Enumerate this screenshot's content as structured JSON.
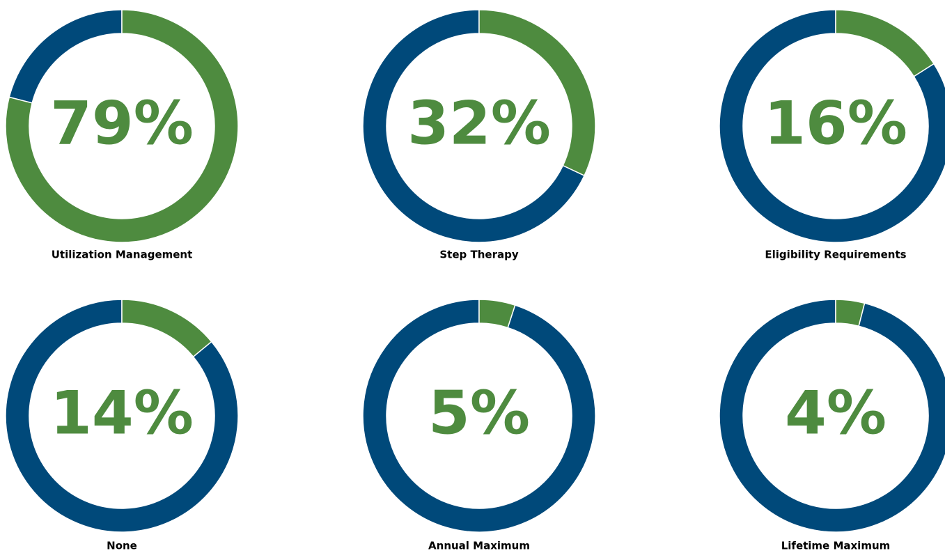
{
  "chart_data": [
    {
      "type": "donut",
      "title": "Utilization Management",
      "values": [
        79
      ],
      "value_labels": [
        "79%"
      ],
      "color": "#4e8b3f",
      "track_color": "#00497a",
      "ylim": [
        0,
        100
      ]
    },
    {
      "type": "donut",
      "title": "Step Therapy",
      "values": [
        32
      ],
      "value_labels": [
        "32%"
      ],
      "color": "#4e8b3f",
      "track_color": "#00497a",
      "ylim": [
        0,
        100
      ]
    },
    {
      "type": "donut",
      "title": "Eligibility Requirements",
      "values": [
        16
      ],
      "value_labels": [
        "16%"
      ],
      "color": "#4e8b3f",
      "track_color": "#00497a",
      "ylim": [
        0,
        100
      ]
    },
    {
      "type": "donut",
      "title": "None",
      "values": [
        14
      ],
      "value_labels": [
        "14%"
      ],
      "color": "#4e8b3f",
      "track_color": "#00497a",
      "ylim": [
        0,
        100
      ]
    },
    {
      "type": "donut",
      "title": "Annual Maximum",
      "values": [
        5
      ],
      "value_labels": [
        "5%"
      ],
      "color": "#4e8b3f",
      "track_color": "#00497a",
      "ylim": [
        0,
        100
      ]
    },
    {
      "type": "donut",
      "title": "Lifetime Maximum",
      "values": [
        4
      ],
      "value_labels": [
        "4%"
      ],
      "color": "#4e8b3f",
      "track_color": "#00497a",
      "ylim": [
        0,
        100
      ]
    }
  ]
}
